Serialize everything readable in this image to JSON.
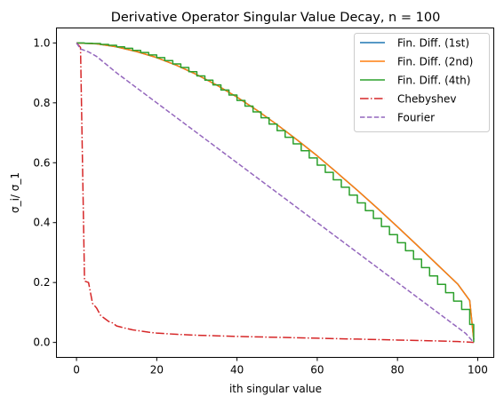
{
  "chart_data": {
    "type": "line",
    "title": "Derivative Operator Singular Value Decay, n = 100",
    "xlabel": "ith singular value",
    "ylabel": "σ_i/ σ_1",
    "xlim": [
      -5,
      104
    ],
    "ylim": [
      -0.05,
      1.05
    ],
    "x_ticks": [
      0,
      20,
      40,
      60,
      80,
      100
    ],
    "y_ticks": [
      0.0,
      0.2,
      0.4,
      0.6,
      0.8,
      1.0
    ],
    "x_tick_labels": [
      "0",
      "20",
      "40",
      "60",
      "80",
      "100"
    ],
    "y_tick_labels": [
      "0.0",
      "0.2",
      "0.4",
      "0.6",
      "0.8",
      "1.0"
    ],
    "grid": false,
    "legend_position": "top-right",
    "series": [
      {
        "name": "Fin. Diff. (1st)",
        "color": "#1f77b4",
        "style": "solid",
        "points": [
          [
            0,
            1.0
          ],
          [
            5,
            0.997
          ],
          [
            10,
            0.987
          ],
          [
            15,
            0.971
          ],
          [
            20,
            0.951
          ],
          [
            25,
            0.925
          ],
          [
            30,
            0.894
          ],
          [
            35,
            0.859
          ],
          [
            40,
            0.819
          ],
          [
            45,
            0.775
          ],
          [
            50,
            0.727
          ],
          [
            55,
            0.676
          ],
          [
            60,
            0.623
          ],
          [
            65,
            0.566
          ],
          [
            70,
            0.508
          ],
          [
            75,
            0.448
          ],
          [
            80,
            0.386
          ],
          [
            85,
            0.323
          ],
          [
            90,
            0.259
          ],
          [
            95,
            0.195
          ],
          [
            98,
            0.14
          ],
          [
            99,
            0.01
          ]
        ]
      },
      {
        "name": "Fin. Diff. (2nd)",
        "color": "#ff7f0e",
        "style": "solid",
        "points": [
          [
            0,
            1.0
          ],
          [
            5,
            0.997
          ],
          [
            10,
            0.987
          ],
          [
            15,
            0.971
          ],
          [
            20,
            0.951
          ],
          [
            25,
            0.925
          ],
          [
            30,
            0.894
          ],
          [
            35,
            0.859
          ],
          [
            40,
            0.819
          ],
          [
            45,
            0.775
          ],
          [
            50,
            0.727
          ],
          [
            55,
            0.676
          ],
          [
            60,
            0.623
          ],
          [
            65,
            0.566
          ],
          [
            70,
            0.508
          ],
          [
            75,
            0.448
          ],
          [
            80,
            0.386
          ],
          [
            85,
            0.323
          ],
          [
            90,
            0.259
          ],
          [
            95,
            0.195
          ],
          [
            98,
            0.14
          ],
          [
            99,
            0.01
          ]
        ]
      },
      {
        "name": "Fin. Diff. (4th)",
        "color": "#2ca02c",
        "style": "steps",
        "points": [
          [
            0,
            1.0
          ],
          [
            2,
            0.999
          ],
          [
            4,
            0.998
          ],
          [
            6,
            0.995
          ],
          [
            8,
            0.992
          ],
          [
            10,
            0.987
          ],
          [
            12,
            0.982
          ],
          [
            14,
            0.975
          ],
          [
            16,
            0.968
          ],
          [
            18,
            0.96
          ],
          [
            20,
            0.951
          ],
          [
            22,
            0.941
          ],
          [
            24,
            0.93
          ],
          [
            26,
            0.918
          ],
          [
            28,
            0.904
          ],
          [
            30,
            0.89
          ],
          [
            32,
            0.876
          ],
          [
            34,
            0.86
          ],
          [
            36,
            0.843
          ],
          [
            38,
            0.826
          ],
          [
            40,
            0.808
          ],
          [
            42,
            0.789
          ],
          [
            44,
            0.77
          ],
          [
            46,
            0.75
          ],
          [
            48,
            0.729
          ],
          [
            50,
            0.707
          ],
          [
            52,
            0.685
          ],
          [
            54,
            0.663
          ],
          [
            56,
            0.64
          ],
          [
            58,
            0.616
          ],
          [
            60,
            0.592
          ],
          [
            62,
            0.568
          ],
          [
            64,
            0.543
          ],
          [
            66,
            0.518
          ],
          [
            68,
            0.492
          ],
          [
            70,
            0.466
          ],
          [
            72,
            0.44
          ],
          [
            74,
            0.414
          ],
          [
            76,
            0.387
          ],
          [
            78,
            0.36
          ],
          [
            80,
            0.333
          ],
          [
            82,
            0.306
          ],
          [
            84,
            0.278
          ],
          [
            86,
            0.25
          ],
          [
            88,
            0.222
          ],
          [
            90,
            0.194
          ],
          [
            92,
            0.166
          ],
          [
            94,
            0.138
          ],
          [
            96,
            0.11
          ],
          [
            98,
            0.06
          ],
          [
            99,
            0.0
          ]
        ]
      },
      {
        "name": "Chebyshev",
        "color": "#d62728",
        "style": "dashdot",
        "points": [
          [
            0,
            1.0
          ],
          [
            1,
            0.985
          ],
          [
            2,
            0.205
          ],
          [
            3,
            0.2
          ],
          [
            4,
            0.13
          ],
          [
            5,
            0.115
          ],
          [
            6,
            0.09
          ],
          [
            7,
            0.08
          ],
          [
            8,
            0.07
          ],
          [
            9,
            0.065
          ],
          [
            10,
            0.055
          ],
          [
            12,
            0.048
          ],
          [
            14,
            0.042
          ],
          [
            16,
            0.038
          ],
          [
            18,
            0.034
          ],
          [
            20,
            0.031
          ],
          [
            25,
            0.027
          ],
          [
            30,
            0.024
          ],
          [
            35,
            0.022
          ],
          [
            40,
            0.02
          ],
          [
            50,
            0.017
          ],
          [
            60,
            0.014
          ],
          [
            70,
            0.011
          ],
          [
            80,
            0.008
          ],
          [
            90,
            0.005
          ],
          [
            95,
            0.003
          ],
          [
            99,
            0.0
          ]
        ]
      },
      {
        "name": "Fourier",
        "color": "#9467bd",
        "style": "dashed",
        "points": [
          [
            0,
            1.0
          ],
          [
            1,
            0.98
          ],
          [
            3,
            0.97
          ],
          [
            5,
            0.955
          ],
          [
            10,
            0.9
          ],
          [
            15,
            0.85
          ],
          [
            20,
            0.8
          ],
          [
            25,
            0.75
          ],
          [
            30,
            0.7
          ],
          [
            35,
            0.65
          ],
          [
            40,
            0.6
          ],
          [
            45,
            0.55
          ],
          [
            50,
            0.5
          ],
          [
            55,
            0.45
          ],
          [
            60,
            0.4
          ],
          [
            65,
            0.35
          ],
          [
            70,
            0.3
          ],
          [
            75,
            0.25
          ],
          [
            80,
            0.2
          ],
          [
            85,
            0.15
          ],
          [
            90,
            0.1
          ],
          [
            95,
            0.05
          ],
          [
            97,
            0.03
          ],
          [
            99,
            0.0
          ]
        ]
      }
    ]
  }
}
